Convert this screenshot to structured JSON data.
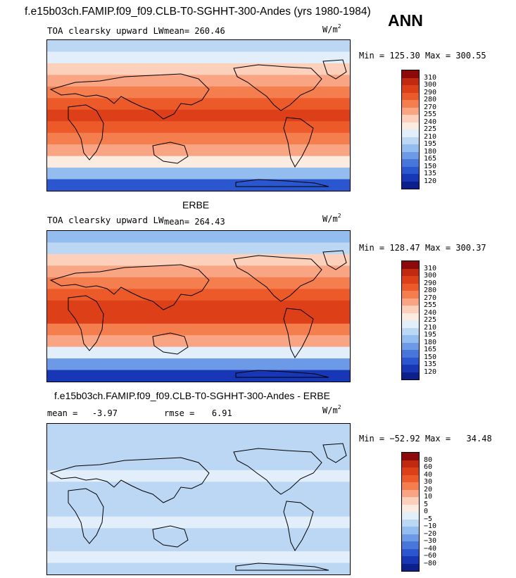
{
  "header": {
    "case_title": "f.e15b03ch.FAMIP.f09_f09.CLB-T0-SGHHT-300-Andes (yrs 1980-1984)",
    "season": "ANN"
  },
  "chart_data": [
    {
      "type": "heatmap",
      "title": "TOA clearsky upward LW",
      "units": "W/m2",
      "mean_label": "mean=",
      "mean": "260.46",
      "min_label": "Min =",
      "min": "125.30",
      "max_label": "Max =",
      "max": "300.55",
      "levels": [
        "310",
        "300",
        "290",
        "280",
        "270",
        "255",
        "240",
        "225",
        "210",
        "195",
        "180",
        "165",
        "150",
        "135",
        "120"
      ],
      "colors": [
        "#8c0a0a",
        "#c12a10",
        "#dd3f18",
        "#ec5a2a",
        "#f57e4e",
        "#f9a583",
        "#fcd0ba",
        "#fcebe0",
        "#e2eefa",
        "#bcd7f4",
        "#93bcef",
        "#6d9ae6",
        "#4877dc",
        "#2a57d0",
        "#1837b6",
        "#0c1f8a"
      ],
      "zonal_bands": [
        "#bcd7f4",
        "#e2eefa",
        "#fcd0ba",
        "#f9a583",
        "#f57e4e",
        "#ec5a2a",
        "#dd3f18",
        "#ec5a2a",
        "#f57e4e",
        "#f9a583",
        "#fcebe0",
        "#93bcef",
        "#2a57d0"
      ]
    },
    {
      "type": "heatmap",
      "panel_title": "ERBE",
      "title": "TOA clearsky upward LW",
      "units": "W/m2",
      "mean_label": "mean=",
      "mean": "264.43",
      "min_label": "Min =",
      "min": "128.47",
      "max_label": "Max =",
      "max": "300.37",
      "levels": [
        "310",
        "300",
        "290",
        "280",
        "270",
        "255",
        "240",
        "225",
        "210",
        "195",
        "180",
        "165",
        "150",
        "135",
        "120"
      ],
      "colors": [
        "#8c0a0a",
        "#c12a10",
        "#dd3f18",
        "#ec5a2a",
        "#f57e4e",
        "#f9a583",
        "#fcd0ba",
        "#fcebe0",
        "#e2eefa",
        "#bcd7f4",
        "#93bcef",
        "#6d9ae6",
        "#4877dc",
        "#2a57d0",
        "#1837b6",
        "#0c1f8a"
      ],
      "zonal_bands": [
        "#93bcef",
        "#bcd7f4",
        "#fcd0ba",
        "#f9a583",
        "#f57e4e",
        "#ec5a2a",
        "#dd3f18",
        "#dd3f18",
        "#f57e4e",
        "#f9a583",
        "#e2eefa",
        "#6d9ae6",
        "#1837b6"
      ]
    },
    {
      "type": "heatmap",
      "panel_title": "f.e15b03ch.FAMIP.f09_f09.CLB-T0-SGHHT-300-Andes - ERBE",
      "units": "W/m2",
      "mean_label": "mean =",
      "mean": "-3.97",
      "rmse_label": "rmse =",
      "rmse": "6.91",
      "min_label": "Min =",
      "min": "−52.92",
      "max_label": "Max =",
      "max": "34.48",
      "levels": [
        "80",
        "60",
        "40",
        "30",
        "20",
        "10",
        "5",
        "0",
        "−5",
        "−10",
        "−20",
        "−30",
        "−40",
        "−60",
        "−80"
      ],
      "colors": [
        "#8c0a0a",
        "#c12a10",
        "#dd3f18",
        "#ec5a2a",
        "#f57e4e",
        "#f9a583",
        "#fcd0ba",
        "#fcebe0",
        "#e2eefa",
        "#bcd7f4",
        "#93bcef",
        "#6d9ae6",
        "#4877dc",
        "#2a57d0",
        "#1837b6",
        "#0c1f8a"
      ],
      "zonal_bands": [
        "#bcd7f4",
        "#bcd7f4",
        "#bcd7f4",
        "#bcd7f4",
        "#e2eefa",
        "#bcd7f4",
        "#bcd7f4",
        "#bcd7f4",
        "#e2eefa",
        "#bcd7f4",
        "#bcd7f4",
        "#e2eefa",
        "#bcd7f4"
      ]
    }
  ]
}
